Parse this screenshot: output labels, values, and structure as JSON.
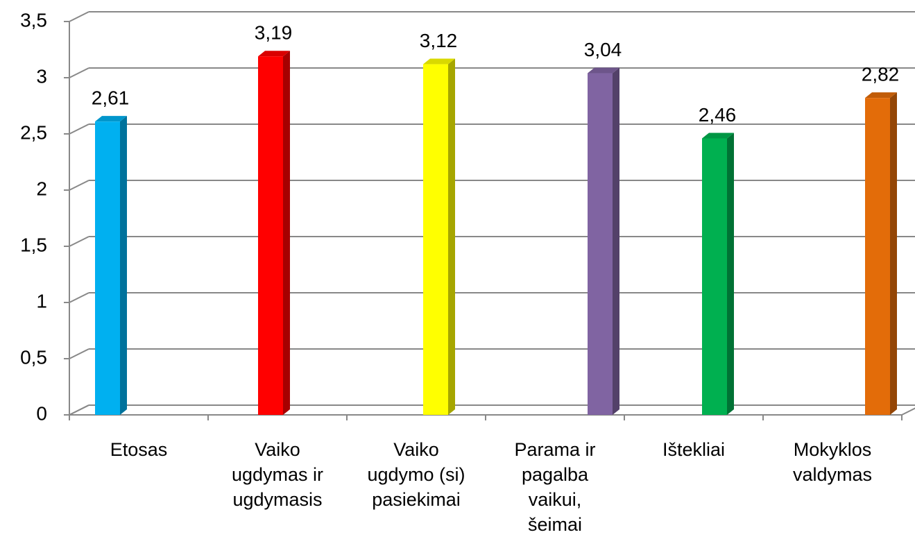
{
  "chart_data": {
    "type": "bar",
    "categories": [
      "Etosas",
      "Vaiko\nugdymas ir\nugdymasis",
      "Vaiko\nugdymo (si)\npasiekimai",
      "Parama ir\npagalba\nvaikui,\nšeimai",
      "Ištekliai",
      "Mokyklos\nvaldymas"
    ],
    "values": [
      2.61,
      3.19,
      3.12,
      3.04,
      2.46,
      2.82
    ],
    "value_labels": [
      "2,61",
      "3,19",
      "3,12",
      "3,04",
      "2,46",
      "2,82"
    ],
    "colors": [
      "#00b0f0",
      "#ff0000",
      "#ffff00",
      "#8064a2",
      "#00b050",
      "#e36c09"
    ],
    "ylim": [
      0,
      3.5
    ],
    "yticks": [
      0,
      {
        "value": 0.5,
        "label": "0,5"
      },
      1,
      {
        "value": 1.5,
        "label": "1,5"
      },
      2,
      {
        "value": 2.5,
        "label": "2,5"
      },
      3,
      {
        "value": 3.5,
        "label": "3,5"
      }
    ],
    "grid": true
  }
}
